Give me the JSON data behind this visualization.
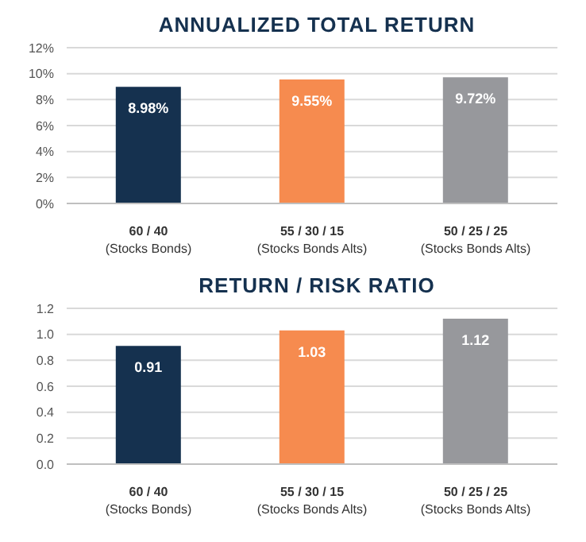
{
  "chart_data": [
    {
      "type": "bar",
      "title": "ANNUALIZED TOTAL RETURN",
      "categories": [
        "60 / 40\n(Stocks Bonds)",
        "55 / 30 / 15\n(Stocks Bonds Alts)",
        "50 / 25 / 25\n(Stocks Bonds Alts)"
      ],
      "values": [
        8.98,
        9.55,
        9.72
      ],
      "colors": [
        "#15314f",
        "#f68b4f",
        "#97989c"
      ],
      "value_labels": [
        "8.98%",
        "9.55%",
        "9.72%"
      ],
      "ylim": [
        0,
        12
      ],
      "yticks": [
        {
          "value": 0,
          "label": "0%"
        },
        {
          "value": 2,
          "label": "2%"
        },
        {
          "value": 4,
          "label": "4%"
        },
        {
          "value": 6,
          "label": "6%"
        },
        {
          "value": 8,
          "label": "8%"
        },
        {
          "value": 10,
          "label": "10%"
        },
        {
          "value": 12,
          "label": "12%"
        }
      ],
      "grid": "y"
    },
    {
      "type": "bar",
      "title": "RETURN / RISK RATIO",
      "categories": [
        "60 / 40\n(Stocks Bonds)",
        "55 / 30 / 15\n(Stocks Bonds Alts)",
        "50 / 25 / 25\n(Stocks Bonds Alts)"
      ],
      "values": [
        0.91,
        1.03,
        1.12
      ],
      "colors": [
        "#15314f",
        "#f68b4f",
        "#97989c"
      ],
      "data_labels": true,
      "ylim": [
        0,
        1.2
      ],
      "yticks": [
        {
          "value": 0,
          "label": "0.0"
        },
        {
          "value": 0.2,
          "label": "0.2"
        },
        {
          "value": 0.4,
          "label": "0.4"
        },
        {
          "value": 0.6,
          "label": "0.6"
        },
        {
          "value": 0.8,
          "label": "0.8"
        },
        {
          "value": 1,
          "label": "1.0"
        },
        {
          "value": 1.2,
          "label": "1.2"
        }
      ],
      "grid": "y"
    }
  ]
}
